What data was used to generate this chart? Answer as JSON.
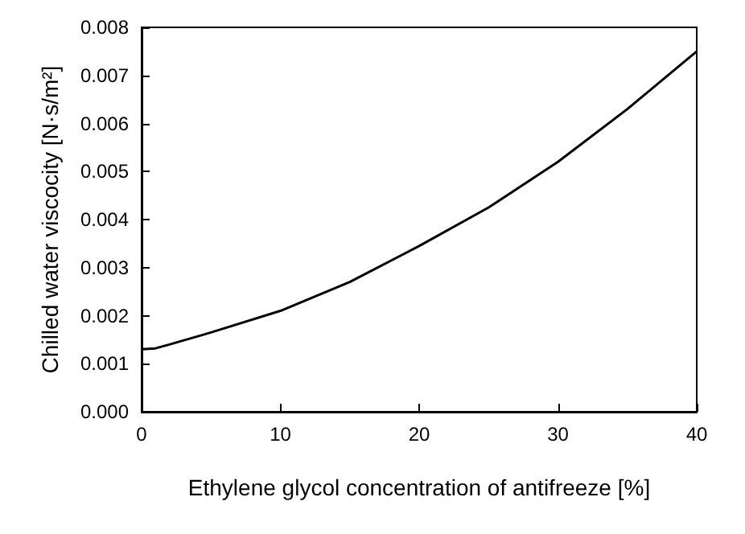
{
  "chart_data": {
    "type": "line",
    "xlabel": "Ethylene glycol concentration of antifreeze [%]",
    "ylabel": "Chilled water viscocity [N·s/m²]",
    "x": [
      0,
      1,
      2,
      5,
      10,
      15,
      20,
      25,
      30,
      35,
      40
    ],
    "values": [
      0.0013,
      0.00132,
      0.0014,
      0.00165,
      0.0021,
      0.0027,
      0.00345,
      0.00425,
      0.0052,
      0.0063,
      0.0075
    ],
    "color": "#000000",
    "xlim": [
      0,
      40
    ],
    "xticks": [
      0,
      10,
      20,
      30,
      40
    ],
    "ylim": [
      0,
      0.008
    ],
    "yticks": [
      {
        "value": 0,
        "label": "0.000"
      },
      {
        "value": 0.001,
        "label": "0.001"
      },
      {
        "value": 0.002,
        "label": "0.002"
      },
      {
        "value": 0.003,
        "label": "0.003"
      },
      {
        "value": 0.004,
        "label": "0.004"
      },
      {
        "value": 0.005,
        "label": "0.005"
      },
      {
        "value": 0.006,
        "label": "0.006"
      },
      {
        "value": 0.007,
        "label": "0.007"
      },
      {
        "value": 0.008,
        "label": "0.008"
      }
    ],
    "grid": false,
    "marker": "none",
    "line_style": "solid"
  }
}
